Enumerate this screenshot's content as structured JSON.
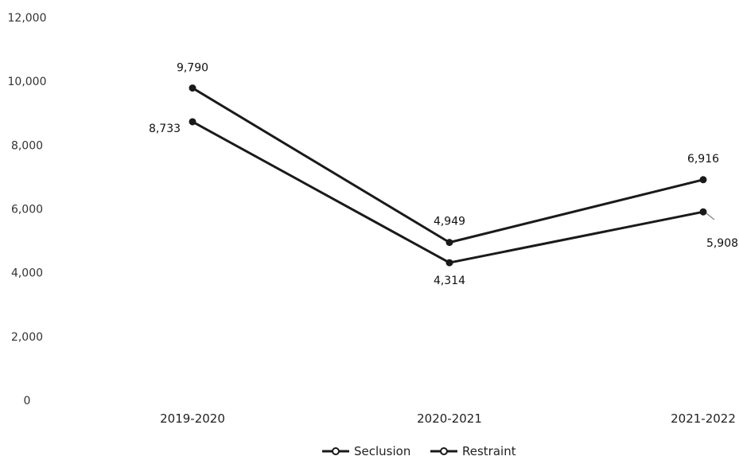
{
  "chart_data": {
    "type": "line",
    "categories": [
      "2019-2020",
      "2020-2021",
      "2021-2022"
    ],
    "series": [
      {
        "name": "Seclusion",
        "values": [
          8733,
          4314,
          5908
        ],
        "labels": [
          "8,733",
          "4,314",
          "5,908"
        ]
      },
      {
        "name": "Restraint",
        "values": [
          9790,
          4949,
          6916
        ],
        "labels": [
          "9,790",
          "4,949",
          "6,916"
        ]
      }
    ],
    "yticks": [
      "0",
      "2,000",
      "4,000",
      "6,000",
      "8,000",
      "10,000",
      "12,000"
    ],
    "ylim": [
      0,
      12000
    ],
    "grid": false,
    "legend": "bottom-center",
    "line_color": "#1a1a1a"
  }
}
